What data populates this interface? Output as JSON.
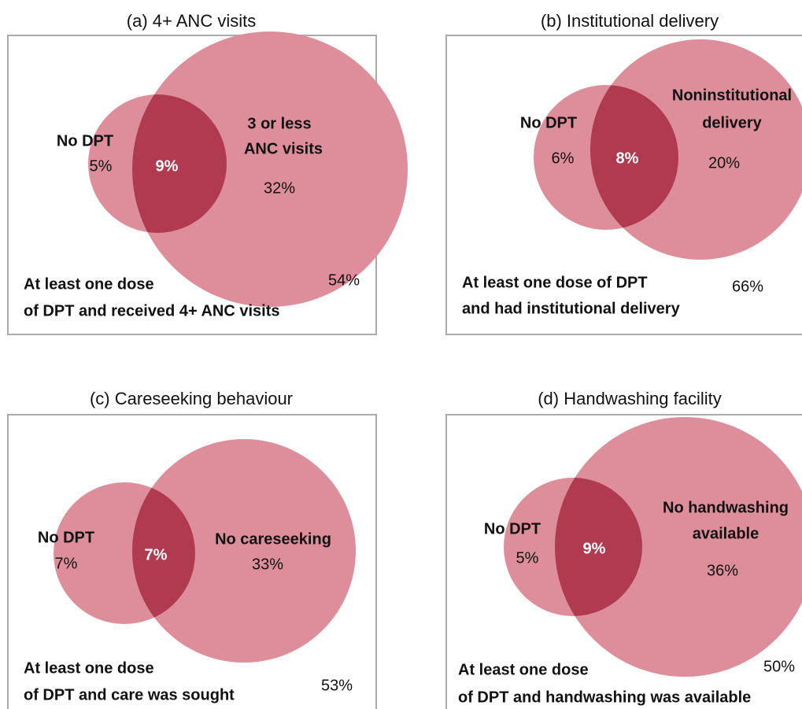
{
  "panels": [
    {
      "title": "(a) 4+ ANC visits",
      "small_label": "No DPT",
      "small_pct": "5%",
      "overlap_pct": "9%",
      "big_label": [
        "3 or less",
        "ANC visits"
      ],
      "big_pct": "32%",
      "outside_pct": "54%",
      "outside_label": [
        "At least one dose",
        "of DPT and received 4+ ANC visits"
      ]
    },
    {
      "title": "(b) Institutional delivery",
      "small_label": "No DPT",
      "small_pct": "6%",
      "overlap_pct": "8%",
      "big_label": [
        "Noninstitutional",
        "delivery"
      ],
      "big_pct": "20%",
      "outside_pct": "66%",
      "outside_label": [
        "At least one dose of DPT",
        "and had institutional delivery"
      ]
    },
    {
      "title": "(c) Careseeking behaviour",
      "small_label": "No DPT",
      "small_pct": "7%",
      "overlap_pct": "7%",
      "big_label": [
        "No careseeking"
      ],
      "big_pct": "33%",
      "outside_pct": "53%",
      "outside_label": [
        "At least one dose",
        "of DPT and care was sought"
      ]
    },
    {
      "title": "(d) Handwashing facility",
      "small_label": "No DPT",
      "small_pct": "5%",
      "overlap_pct": "9%",
      "big_label": [
        "No handwashing",
        "available"
      ],
      "big_pct": "36%",
      "outside_pct": "50%",
      "outside_label": [
        "At least one dose",
        "of DPT and handwashing was available"
      ]
    }
  ]
}
